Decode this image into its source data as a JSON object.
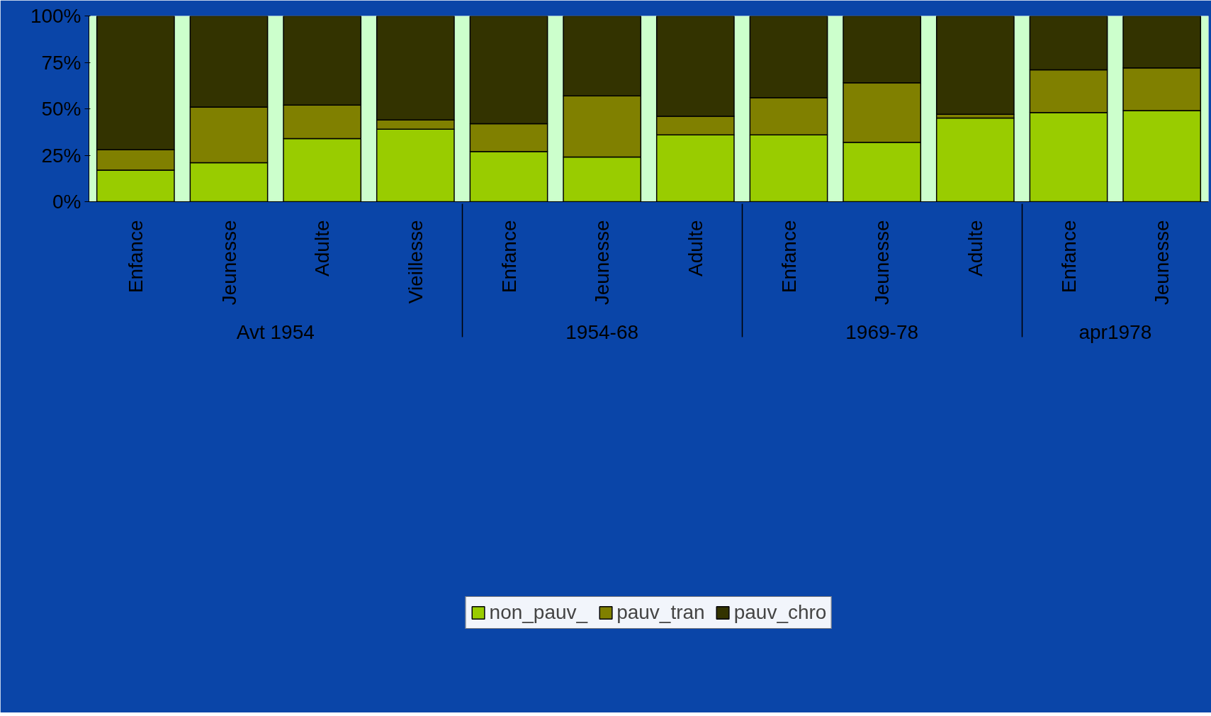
{
  "chart_data": {
    "type": "bar",
    "stacked": true,
    "categories": [
      "Enfance",
      "Jeunesse",
      "Adulte",
      "Vieillesse",
      "Enfance",
      "Jeunesse",
      "Adulte",
      "Enfance",
      "Jeunesse",
      "Adulte",
      "Enfance",
      "Jeunesse"
    ],
    "series": [
      {
        "name": "non_pauv_",
        "color": "#99cc00",
        "values": [
          17,
          21,
          34,
          39,
          27,
          24,
          36,
          36,
          32,
          45,
          48,
          49
        ]
      },
      {
        "name": "pauv_tran",
        "color": "#808000",
        "values": [
          11,
          30,
          18,
          5,
          15,
          33,
          10,
          20,
          32,
          2,
          23,
          23
        ]
      },
      {
        "name": "pauv_chro",
        "color": "#333300",
        "values": [
          72,
          49,
          48,
          56,
          58,
          43,
          54,
          44,
          36,
          53,
          29,
          28
        ]
      }
    ],
    "annotations": [
      "Avt 1954",
      "1954-68",
      "1969-78",
      "apr1978"
    ],
    "ylim": [
      0,
      100
    ],
    "yticks": [
      {
        "value": 0,
        "label": "0%"
      },
      {
        "value": 25,
        "label": "25%"
      },
      {
        "value": 50,
        "label": "50%"
      },
      {
        "value": 75,
        "label": "75%"
      },
      {
        "value": 100,
        "label": "100%"
      }
    ],
    "bands": [
      {
        "axis": "y",
        "from": 0,
        "to": 100,
        "color": "#ccffcc"
      }
    ],
    "grid": "y",
    "legend": "bottom"
  }
}
